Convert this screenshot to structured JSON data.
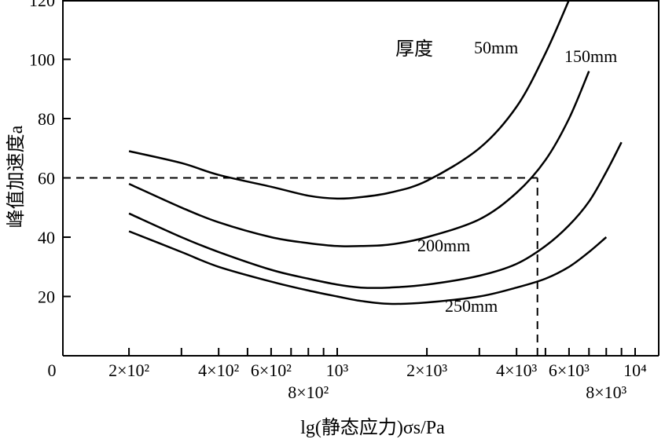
{
  "chart_data": {
    "type": "line",
    "xlabel": "lg(静态应力)σs/Pa",
    "ylabel": "峰值加速度a",
    "x_scale": "log",
    "xlim": [
      120,
      12000
    ],
    "ylim": [
      0,
      120
    ],
    "origin_label": "0",
    "y_ticks": [
      {
        "value": 20,
        "label": "20"
      },
      {
        "value": 40,
        "label": "40"
      },
      {
        "value": 60,
        "label": "60"
      },
      {
        "value": 80,
        "label": "80"
      },
      {
        "value": 100,
        "label": "100"
      },
      {
        "value": 120,
        "label": "120"
      }
    ],
    "x_ticks": [
      {
        "value": 200,
        "label": "2×10²",
        "row": 0
      },
      {
        "value": 300,
        "label": "",
        "row": 0
      },
      {
        "value": 400,
        "label": "4×10²",
        "row": 0
      },
      {
        "value": 500,
        "label": "",
        "row": 0
      },
      {
        "value": 600,
        "label": "6×10²",
        "row": 0
      },
      {
        "value": 700,
        "label": "",
        "row": 0
      },
      {
        "value": 800,
        "label": "8×10²",
        "row": 1
      },
      {
        "value": 900,
        "label": "",
        "row": 0
      },
      {
        "value": 1000,
        "label": "10³",
        "row": 0
      },
      {
        "value": 2000,
        "label": "2×10³",
        "row": 0
      },
      {
        "value": 3000,
        "label": "",
        "row": 0
      },
      {
        "value": 4000,
        "label": "4×10³",
        "row": 0
      },
      {
        "value": 5000,
        "label": "",
        "row": 0
      },
      {
        "value": 6000,
        "label": "6×10³",
        "row": 0
      },
      {
        "value": 7000,
        "label": "",
        "row": 0
      },
      {
        "value": 8000,
        "label": "8×10³",
        "row": 1
      },
      {
        "value": 9000,
        "label": "",
        "row": 0
      },
      {
        "value": 10000,
        "label": "10⁴",
        "row": 0
      }
    ],
    "legend_title": "厚度",
    "series": [
      {
        "name": "50mm",
        "x": [
          200,
          300,
          400,
          600,
          800,
          1000,
          1200,
          1500,
          2000,
          3000,
          4000,
          5000,
          6000
        ],
        "y": [
          69,
          65,
          61,
          57,
          54,
          53,
          53.5,
          55,
          59,
          70,
          84,
          102,
          120
        ]
      },
      {
        "name": "150mm",
        "x": [
          200,
          300,
          400,
          600,
          800,
          1000,
          1200,
          1500,
          2000,
          3000,
          4000,
          5000,
          6000,
          7000
        ],
        "y": [
          58,
          50,
          45,
          40,
          38,
          37,
          37,
          37.5,
          40,
          46,
          55,
          66,
          80,
          96
        ]
      },
      {
        "name": "200mm",
        "x": [
          200,
          300,
          400,
          600,
          800,
          1000,
          1200,
          1500,
          2000,
          3000,
          4000,
          5000,
          6000,
          7000,
          8000,
          9000
        ],
        "y": [
          48,
          40,
          35,
          29,
          26,
          24,
          23,
          23,
          24,
          27,
          31,
          37,
          44,
          52,
          62,
          72
        ]
      },
      {
        "name": "250mm",
        "x": [
          200,
          300,
          400,
          600,
          800,
          1000,
          1200,
          1500,
          2000,
          3000,
          4000,
          5000,
          6000,
          7000,
          8000
        ],
        "y": [
          42,
          35,
          30,
          25,
          22,
          20,
          18.5,
          17.5,
          18,
          20,
          23,
          26,
          30,
          35,
          40
        ]
      }
    ],
    "reference_lines": [
      {
        "type": "horizontal",
        "y": 60,
        "x_from": 120,
        "x_to": 4700,
        "style": "dashed"
      },
      {
        "type": "vertical",
        "x": 4700,
        "y_from": 0,
        "y_to": 60,
        "style": "dashed"
      }
    ]
  }
}
